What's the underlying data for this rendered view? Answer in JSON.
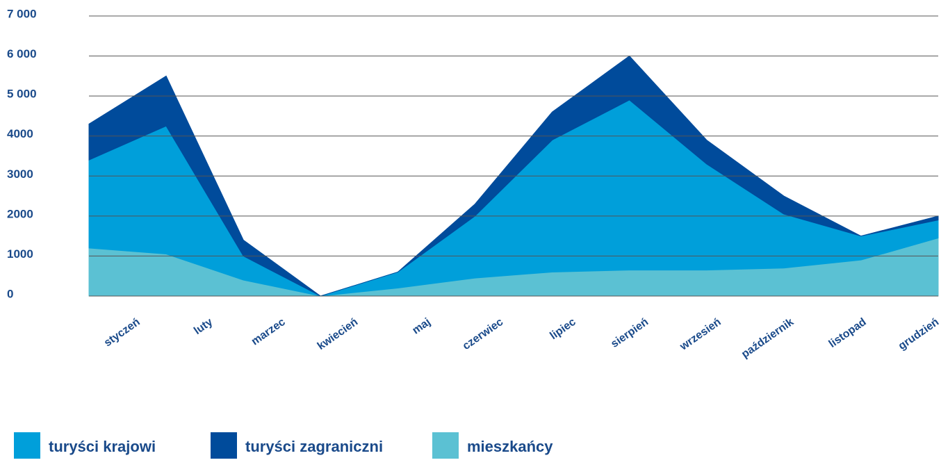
{
  "chart_data": {
    "type": "stacked_area",
    "categories": [
      "styczeń",
      "luty",
      "marzec",
      "kwiecień",
      "maj",
      "czerwiec",
      "lipiec",
      "sierpień",
      "wrzesień",
      "październik",
      "listopad",
      "grudzień"
    ],
    "series": [
      {
        "name": "turyści krajowi",
        "color": "#009fda",
        "values": [
          2200,
          3200,
          600,
          0,
          400,
          1550,
          3300,
          4250,
          2650,
          1350,
          600,
          450
        ]
      },
      {
        "name": "turyści zagraniczni",
        "color": "#004b9b",
        "values": [
          900,
          1250,
          400,
          0,
          0,
          300,
          700,
          1100,
          600,
          450,
          0,
          100
        ]
      },
      {
        "name": "mieszkańcy",
        "color": "#5bc1d3",
        "values": [
          1200,
          1050,
          400,
          0,
          200,
          450,
          600,
          650,
          650,
          700,
          900,
          1450
        ]
      }
    ],
    "ylim": [
      0,
      7000
    ],
    "yticks": [
      0,
      1000,
      2000,
      3000,
      4000,
      {
        "value": 5000,
        "label": "5 000"
      },
      {
        "value": 6000,
        "label": "6 000"
      },
      {
        "value": 7000,
        "label": "7 000"
      }
    ],
    "grid": true
  }
}
